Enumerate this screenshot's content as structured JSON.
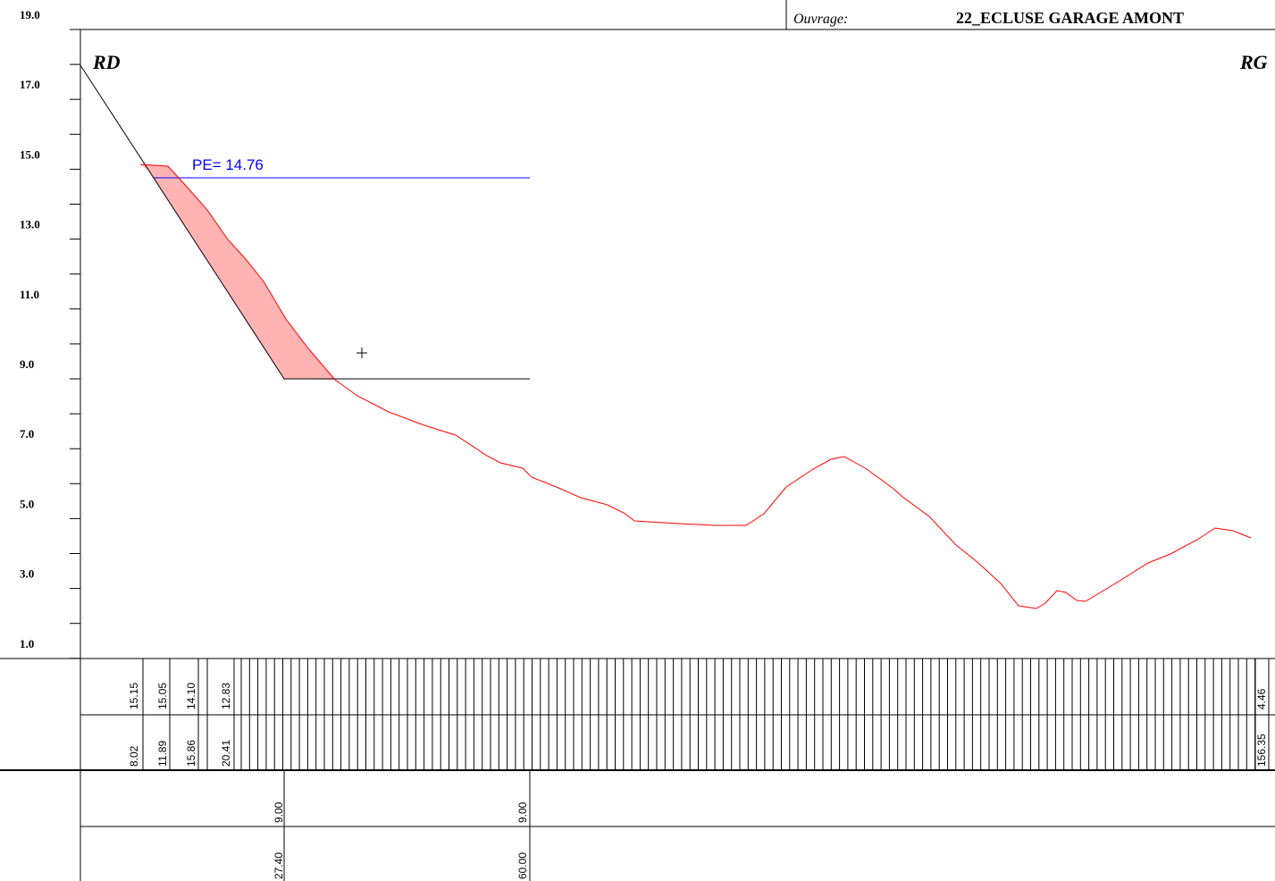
{
  "header": {
    "label": "Ouvrage:",
    "value": "22_ECLUSE GARAGE AMONT"
  },
  "axis": {
    "labels": [
      "19.0",
      "17.0",
      "15.0",
      "13.0",
      "11.0",
      "9.0",
      "7.0",
      "5.0",
      "3.0",
      "1.0"
    ]
  },
  "sides": {
    "left": "RD",
    "right": "RG"
  },
  "annotation": "PE= 14.76",
  "table": {
    "row1": [
      "15.15",
      "15.05",
      "14.10",
      "12.83",
      "4.46"
    ],
    "row2": [
      "8.02",
      "11.89",
      "15.86",
      "20.41",
      "156.35"
    ],
    "row3": [
      "9.00",
      "9.00"
    ],
    "row4": [
      "27.40",
      "60.00"
    ]
  }
}
